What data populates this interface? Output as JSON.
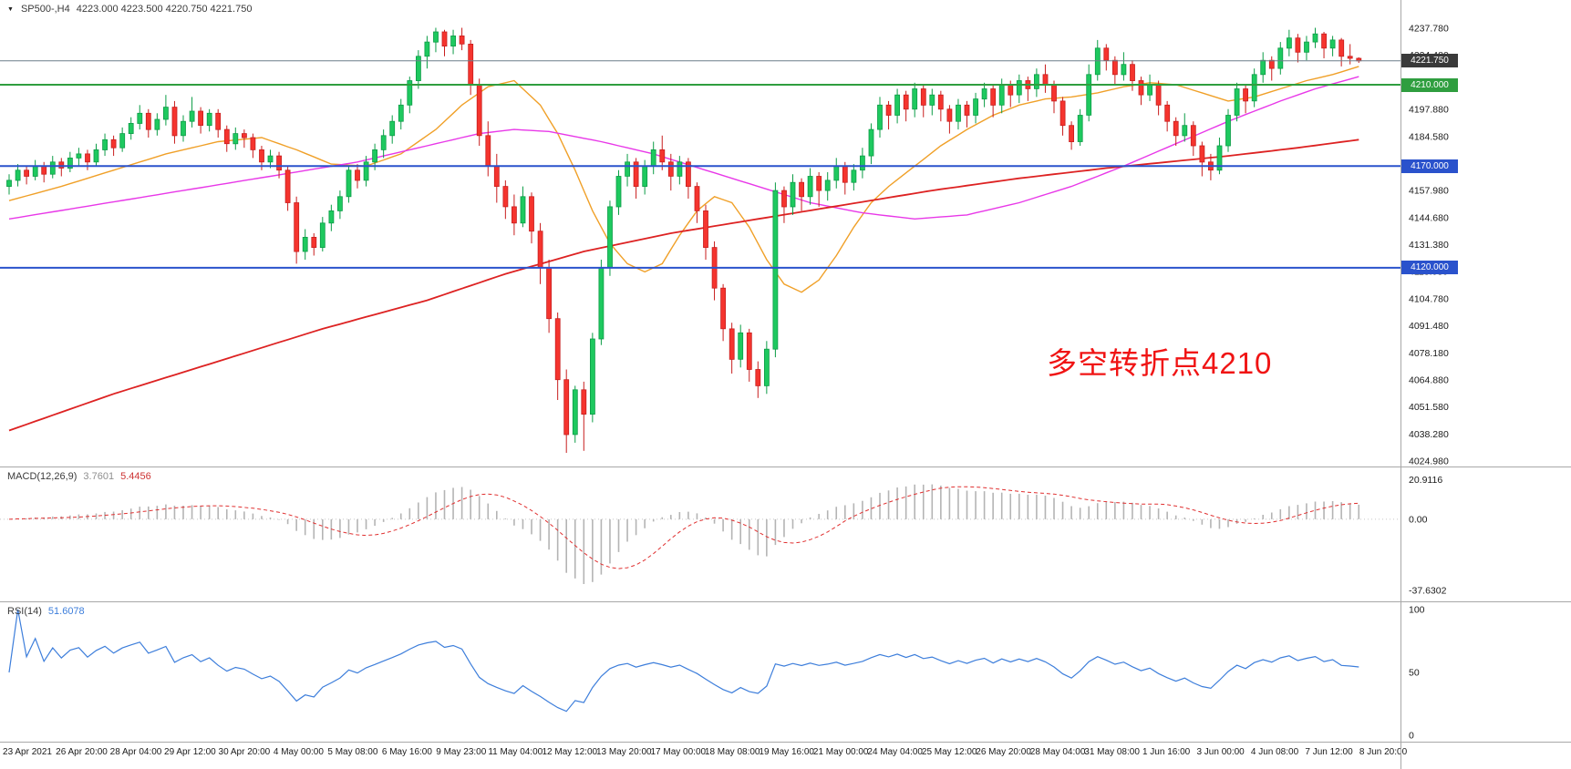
{
  "header": {
    "symbol_timeframe": "SP500-,H4",
    "ohlc": "4223.000 4223.500 4220.750 4221.750"
  },
  "annotation": {
    "text": "多空转折点4210",
    "color": "#f01414"
  },
  "hlines": [
    {
      "price": 4221.75,
      "label": "4221.750",
      "line_color": "#6b7f8a",
      "badge_color": "#3a3a3a",
      "width": 1
    },
    {
      "price": 4210.0,
      "label": "4210.000",
      "line_color": "#2f9e3f",
      "badge_color": "#2f9e3f",
      "width": 2
    },
    {
      "price": 4170.0,
      "label": "4170.000",
      "line_color": "#2a52cc",
      "badge_color": "#2a52cc",
      "width": 2
    },
    {
      "price": 4120.0,
      "label": "4120.000",
      "line_color": "#2a52cc",
      "badge_color": "#2a52cc",
      "width": 2
    }
  ],
  "colors": {
    "bull": "#1ec95f",
    "bull_border": "#0c9c46",
    "bear": "#f5342e",
    "bear_border": "#c81e1e",
    "ma_fast": "#f0a028",
    "ma_mid": "#e838e8",
    "ma_slow": "#dd2222",
    "macd_hist": "#b4b4b4",
    "macd_signal": "#e03030",
    "rsi_line": "#3d7edb",
    "separator": "#a8a8a8",
    "axis_text": "#1a1a1a",
    "zero_line": "#c8c8c8"
  },
  "chart_data": {
    "type": "candlestick",
    "symbol": "SP500-",
    "timeframe": "H4",
    "scale": {
      "price_top": 4237.78,
      "price_bottom": 4024.98
    },
    "price_axis_labels": [
      "4237.780",
      "4224.480",
      "4211.180",
      "4197.880",
      "4184.580",
      "4171.280",
      "4157.980",
      "4144.680",
      "4131.380",
      "4118.080",
      "4104.780",
      "4091.480",
      "4078.180",
      "4064.880",
      "4051.580",
      "4038.280",
      "4024.980"
    ],
    "time_labels": [
      "23 Apr 2021",
      "26 Apr 20:00",
      "28 Apr 04:00",
      "29 Apr 12:00",
      "30 Apr 20:00",
      "4 May 00:00",
      "5 May 08:00",
      "6 May 16:00",
      "9 May 23:00",
      "11 May 04:00",
      "12 May 12:00",
      "13 May 20:00",
      "17 May 00:00",
      "18 May 08:00",
      "19 May 16:00",
      "21 May 00:00",
      "24 May 04:00",
      "25 May 12:00",
      "26 May 20:00",
      "28 May 04:00",
      "31 May 08:00",
      "1 Jun 16:00",
      "3 Jun 00:00",
      "4 Jun 08:00",
      "7 Jun 12:00",
      "8 Jun 20:00"
    ],
    "candles": [
      [
        4160,
        4166,
        4156,
        4163
      ],
      [
        4163,
        4171,
        4160,
        4168
      ],
      [
        4168,
        4170,
        4161,
        4165
      ],
      [
        4165,
        4173,
        4163,
        4170
      ],
      [
        4170,
        4172,
        4162,
        4166
      ],
      [
        4166,
        4175,
        4164,
        4172
      ],
      [
        4172,
        4174,
        4165,
        4169
      ],
      [
        4169,
        4177,
        4167,
        4174
      ],
      [
        4174,
        4179,
        4170,
        4176
      ],
      [
        4176,
        4178,
        4168,
        4172
      ],
      [
        4172,
        4181,
        4170,
        4178
      ],
      [
        4178,
        4186,
        4175,
        4183
      ],
      [
        4183,
        4185,
        4175,
        4179
      ],
      [
        4179,
        4189,
        4177,
        4186
      ],
      [
        4186,
        4194,
        4183,
        4191
      ],
      [
        4191,
        4200,
        4188,
        4196
      ],
      [
        4196,
        4198,
        4184,
        4188
      ],
      [
        4188,
        4196,
        4185,
        4193
      ],
      [
        4193,
        4205,
        4190,
        4199
      ],
      [
        4199,
        4202,
        4181,
        4185
      ],
      [
        4185,
        4195,
        4182,
        4192
      ],
      [
        4192,
        4204,
        4189,
        4197
      ],
      [
        4197,
        4199,
        4186,
        4190
      ],
      [
        4190,
        4198,
        4187,
        4196
      ],
      [
        4196,
        4198,
        4184,
        4188
      ],
      [
        4188,
        4190,
        4177,
        4181
      ],
      [
        4181,
        4189,
        4178,
        4186
      ],
      [
        4186,
        4188,
        4179,
        4184
      ],
      [
        4184,
        4186,
        4174,
        4178
      ],
      [
        4178,
        4180,
        4168,
        4172
      ],
      [
        4172,
        4178,
        4169,
        4175
      ],
      [
        4175,
        4177,
        4164,
        4168
      ],
      [
        4168,
        4170,
        4148,
        4152
      ],
      [
        4152,
        4155,
        4122,
        4128
      ],
      [
        4128,
        4139,
        4124,
        4135
      ],
      [
        4135,
        4137,
        4126,
        4130
      ],
      [
        4130,
        4145,
        4128,
        4142
      ],
      [
        4142,
        4151,
        4138,
        4148
      ],
      [
        4148,
        4158,
        4144,
        4155
      ],
      [
        4155,
        4170,
        4152,
        4168
      ],
      [
        4168,
        4171,
        4159,
        4163
      ],
      [
        4163,
        4175,
        4160,
        4172
      ],
      [
        4172,
        4181,
        4168,
        4178
      ],
      [
        4178,
        4188,
        4174,
        4185
      ],
      [
        4185,
        4195,
        4181,
        4192
      ],
      [
        4192,
        4203,
        4188,
        4200
      ],
      [
        4200,
        4214,
        4196,
        4212
      ],
      [
        4212,
        4227,
        4208,
        4224
      ],
      [
        4224,
        4234,
        4218,
        4231
      ],
      [
        4231,
        4238,
        4226,
        4236
      ],
      [
        4236,
        4237,
        4224,
        4229
      ],
      [
        4229,
        4237,
        4225,
        4234
      ],
      [
        4234,
        4238,
        4227,
        4230
      ],
      [
        4230,
        4232,
        4205,
        4210
      ],
      [
        4210,
        4213,
        4180,
        4185
      ],
      [
        4185,
        4192,
        4165,
        4170
      ],
      [
        4170,
        4176,
        4152,
        4160
      ],
      [
        4160,
        4163,
        4144,
        4150
      ],
      [
        4150,
        4156,
        4136,
        4142
      ],
      [
        4142,
        4160,
        4140,
        4155
      ],
      [
        4155,
        4157,
        4132,
        4138
      ],
      [
        4138,
        4142,
        4112,
        4120
      ],
      [
        4120,
        4124,
        4088,
        4095
      ],
      [
        4095,
        4098,
        4055,
        4065
      ],
      [
        4065,
        4070,
        4029,
        4038
      ],
      [
        4038,
        4062,
        4034,
        4060
      ],
      [
        4060,
        4064,
        4030,
        4048
      ],
      [
        4048,
        4088,
        4044,
        4085
      ],
      [
        4085,
        4124,
        4082,
        4120
      ],
      [
        4120,
        4153,
        4116,
        4150
      ],
      [
        4150,
        4168,
        4146,
        4165
      ],
      [
        4165,
        4176,
        4160,
        4172
      ],
      [
        4172,
        4174,
        4154,
        4160
      ],
      [
        4160,
        4173,
        4156,
        4170
      ],
      [
        4170,
        4182,
        4166,
        4178
      ],
      [
        4178,
        4185,
        4168,
        4172
      ],
      [
        4172,
        4176,
        4158,
        4165
      ],
      [
        4165,
        4175,
        4161,
        4172
      ],
      [
        4172,
        4174,
        4154,
        4160
      ],
      [
        4160,
        4162,
        4142,
        4148
      ],
      [
        4148,
        4151,
        4124,
        4130
      ],
      [
        4130,
        4133,
        4104,
        4110
      ],
      [
        4110,
        4112,
        4084,
        4090
      ],
      [
        4090,
        4093,
        4068,
        4075
      ],
      [
        4075,
        4092,
        4071,
        4088
      ],
      [
        4088,
        4090,
        4064,
        4070
      ],
      [
        4070,
        4074,
        4056,
        4062
      ],
      [
        4062,
        4084,
        4058,
        4080
      ],
      [
        4080,
        4162,
        4076,
        4158
      ],
      [
        4158,
        4160,
        4142,
        4150
      ],
      [
        4150,
        4166,
        4146,
        4162
      ],
      [
        4162,
        4164,
        4148,
        4155
      ],
      [
        4155,
        4169,
        4151,
        4165
      ],
      [
        4165,
        4167,
        4150,
        4158
      ],
      [
        4158,
        4167,
        4153,
        4163
      ],
      [
        4163,
        4174,
        4159,
        4170
      ],
      [
        4170,
        4172,
        4156,
        4162
      ],
      [
        4162,
        4171,
        4158,
        4168
      ],
      [
        4168,
        4179,
        4164,
        4175
      ],
      [
        4175,
        4191,
        4171,
        4188
      ],
      [
        4188,
        4204,
        4184,
        4200
      ],
      [
        4200,
        4202,
        4188,
        4195
      ],
      [
        4195,
        4208,
        4191,
        4205
      ],
      [
        4205,
        4207,
        4192,
        4198
      ],
      [
        4198,
        4211,
        4194,
        4208
      ],
      [
        4208,
        4210,
        4194,
        4200
      ],
      [
        4200,
        4208,
        4195,
        4205
      ],
      [
        4205,
        4207,
        4192,
        4198
      ],
      [
        4198,
        4200,
        4186,
        4192
      ],
      [
        4192,
        4203,
        4188,
        4200
      ],
      [
        4200,
        4202,
        4189,
        4195
      ],
      [
        4195,
        4206,
        4191,
        4203
      ],
      [
        4203,
        4211,
        4199,
        4208
      ],
      [
        4208,
        4210,
        4194,
        4200
      ],
      [
        4200,
        4213,
        4196,
        4210
      ],
      [
        4210,
        4212,
        4199,
        4205
      ],
      [
        4205,
        4215,
        4201,
        4212
      ],
      [
        4212,
        4214,
        4202,
        4208
      ],
      [
        4208,
        4218,
        4204,
        4215
      ],
      [
        4215,
        4220,
        4206,
        4210
      ],
      [
        4210,
        4212,
        4196,
        4202
      ],
      [
        4202,
        4204,
        4185,
        4190
      ],
      [
        4190,
        4192,
        4178,
        4182
      ],
      [
        4182,
        4198,
        4180,
        4195
      ],
      [
        4195,
        4220,
        4192,
        4215
      ],
      [
        4215,
        4232,
        4212,
        4228
      ],
      [
        4228,
        4230,
        4217,
        4222
      ],
      [
        4222,
        4224,
        4210,
        4215
      ],
      [
        4215,
        4226,
        4212,
        4220
      ],
      [
        4220,
        4222,
        4207,
        4212
      ],
      [
        4212,
        4214,
        4200,
        4205
      ],
      [
        4205,
        4215,
        4202,
        4210
      ],
      [
        4210,
        4212,
        4195,
        4200
      ],
      [
        4200,
        4202,
        4187,
        4192
      ],
      [
        4192,
        4194,
        4180,
        4185
      ],
      [
        4185,
        4196,
        4182,
        4190
      ],
      [
        4190,
        4192,
        4175,
        4180
      ],
      [
        4180,
        4182,
        4165,
        4172
      ],
      [
        4172,
        4176,
        4163,
        4168
      ],
      [
        4168,
        4184,
        4166,
        4180
      ],
      [
        4180,
        4198,
        4177,
        4195
      ],
      [
        4195,
        4211,
        4192,
        4208
      ],
      [
        4208,
        4210,
        4196,
        4202
      ],
      [
        4202,
        4218,
        4199,
        4215
      ],
      [
        4215,
        4226,
        4211,
        4222
      ],
      [
        4222,
        4224,
        4212,
        4218
      ],
      [
        4218,
        4231,
        4215,
        4228
      ],
      [
        4228,
        4237,
        4224,
        4233
      ],
      [
        4233,
        4235,
        4221,
        4226
      ],
      [
        4226,
        4234,
        4222,
        4231
      ],
      [
        4231,
        4238,
        4228,
        4235
      ],
      [
        4235,
        4236,
        4223,
        4228
      ],
      [
        4228,
        4234,
        4224,
        4232
      ],
      [
        4232,
        4233,
        4219,
        4224
      ],
      [
        4224,
        4230,
        4220,
        4223
      ],
      [
        4223,
        4223.5,
        4220.75,
        4221.75
      ]
    ],
    "ma_lines": [
      {
        "name": "ma-fast-orange",
        "anchors": [
          [
            0,
            4153
          ],
          [
            6,
            4160
          ],
          [
            12,
            4168
          ],
          [
            18,
            4176
          ],
          [
            24,
            4182
          ],
          [
            29,
            4184
          ],
          [
            33,
            4178
          ],
          [
            37,
            4171
          ],
          [
            41,
            4170
          ],
          [
            45,
            4176
          ],
          [
            49,
            4188
          ],
          [
            52,
            4200
          ],
          [
            55,
            4209
          ],
          [
            58,
            4212
          ],
          [
            61,
            4200
          ],
          [
            63,
            4186
          ],
          [
            65,
            4168
          ],
          [
            67,
            4148
          ],
          [
            69,
            4132
          ],
          [
            71,
            4122
          ],
          [
            73,
            4118
          ],
          [
            75,
            4122
          ],
          [
            77,
            4136
          ],
          [
            79,
            4148
          ],
          [
            81,
            4155
          ],
          [
            83,
            4152
          ],
          [
            85,
            4140
          ],
          [
            87,
            4124
          ],
          [
            89,
            4112
          ],
          [
            91,
            4108
          ],
          [
            93,
            4114
          ],
          [
            95,
            4126
          ],
          [
            97,
            4140
          ],
          [
            99,
            4152
          ],
          [
            101,
            4160
          ],
          [
            104,
            4170
          ],
          [
            107,
            4180
          ],
          [
            110,
            4188
          ],
          [
            113,
            4195
          ],
          [
            116,
            4200
          ],
          [
            119,
            4203
          ],
          [
            122,
            4204
          ],
          [
            125,
            4206
          ],
          [
            128,
            4209
          ],
          [
            131,
            4211
          ],
          [
            134,
            4210
          ],
          [
            137,
            4206
          ],
          [
            140,
            4202
          ],
          [
            143,
            4204
          ],
          [
            146,
            4208
          ],
          [
            149,
            4212
          ],
          [
            152,
            4215
          ],
          [
            155,
            4219
          ]
        ]
      },
      {
        "name": "ma-mid-magenta",
        "anchors": [
          [
            0,
            4144
          ],
          [
            10,
            4151
          ],
          [
            20,
            4158
          ],
          [
            30,
            4165
          ],
          [
            40,
            4172
          ],
          [
            48,
            4180
          ],
          [
            54,
            4186
          ],
          [
            58,
            4188
          ],
          [
            62,
            4187
          ],
          [
            68,
            4182
          ],
          [
            74,
            4176
          ],
          [
            80,
            4168
          ],
          [
            86,
            4160
          ],
          [
            92,
            4152
          ],
          [
            98,
            4147
          ],
          [
            104,
            4144
          ],
          [
            110,
            4146
          ],
          [
            116,
            4152
          ],
          [
            122,
            4160
          ],
          [
            128,
            4170
          ],
          [
            134,
            4181
          ],
          [
            140,
            4192
          ],
          [
            146,
            4202
          ],
          [
            150,
            4208
          ],
          [
            155,
            4214
          ]
        ]
      },
      {
        "name": "ma-slow-red",
        "anchors": [
          [
            0,
            4040
          ],
          [
            12,
            4058
          ],
          [
            24,
            4074
          ],
          [
            36,
            4090
          ],
          [
            48,
            4104
          ],
          [
            57,
            4117
          ],
          [
            66,
            4128
          ],
          [
            76,
            4137
          ],
          [
            86,
            4144
          ],
          [
            96,
            4151
          ],
          [
            106,
            4158
          ],
          [
            116,
            4164
          ],
          [
            126,
            4169
          ],
          [
            133,
            4172
          ],
          [
            140,
            4175
          ],
          [
            148,
            4179
          ],
          [
            155,
            4183
          ]
        ]
      }
    ],
    "macd": {
      "label": "MACD(12,26,9)",
      "value": "3.7601",
      "signal_value": "5.4456",
      "axis": [
        "20.9116",
        "0.00",
        "-37.6302"
      ]
    },
    "rsi": {
      "label": "RSI(14)",
      "value": "51.6078",
      "axis": [
        "100",
        "50",
        "0"
      ]
    }
  }
}
